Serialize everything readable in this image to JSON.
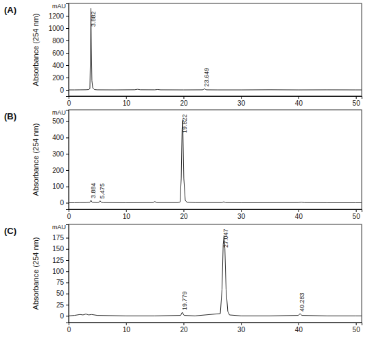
{
  "chart_data": [
    {
      "type": "line",
      "title": "(A)",
      "y_label": "Absorbance (254 nm)",
      "y_unit": "mAU",
      "color": "#2b2b2b",
      "grid": false,
      "xlim": [
        0,
        51
      ],
      "xticks": [
        0,
        10,
        20,
        30,
        40,
        50
      ],
      "ylim": [
        -100,
        1400
      ],
      "yticks": [
        0,
        200,
        400,
        600,
        800,
        1000,
        1200
      ],
      "x": [
        0,
        1,
        2,
        3,
        3.5,
        3.7,
        3.8,
        3.882,
        3.95,
        4.05,
        4.2,
        4.5,
        5,
        8,
        11.5,
        12,
        12.5,
        15,
        15.5,
        16,
        20,
        23.3,
        23.5,
        23.649,
        23.8,
        24,
        26,
        30,
        35,
        40,
        45,
        50,
        51
      ],
      "values": [
        0,
        0,
        1,
        2,
        5,
        20,
        600,
        1320,
        700,
        150,
        30,
        5,
        1,
        0,
        2,
        10,
        2,
        1,
        6,
        1,
        0,
        1,
        8,
        20,
        8,
        1,
        0,
        0,
        2,
        0,
        1,
        0,
        0
      ],
      "annotations": [
        {
          "x": 3.882,
          "label": "3.882"
        },
        {
          "x": 23.649,
          "label": "23.649"
        }
      ]
    },
    {
      "type": "line",
      "title": "(B)",
      "y_label": "Absorbance (254 nm)",
      "y_unit": "mAU",
      "color": "#2b2b2b",
      "grid": false,
      "xlim": [
        0,
        51
      ],
      "xticks": [
        0,
        10,
        20,
        30,
        40,
        50
      ],
      "ylim": [
        -40,
        570
      ],
      "yticks": [
        0,
        100,
        200,
        300,
        400,
        500
      ],
      "x": [
        0,
        1,
        2,
        3,
        3.7,
        3.884,
        4.1,
        5,
        5.3,
        5.475,
        5.7,
        6,
        10,
        14.7,
        15,
        15.3,
        19,
        19.4,
        19.6,
        19.75,
        19.822,
        19.9,
        20.05,
        20.3,
        20.6,
        22,
        26.7,
        27,
        27.3,
        30,
        40,
        40.5,
        41,
        45,
        50,
        51
      ],
      "values": [
        0,
        0,
        1,
        1,
        3,
        15,
        3,
        1,
        3,
        12,
        3,
        1,
        0,
        1,
        8,
        1,
        1,
        5,
        150,
        450,
        505,
        430,
        150,
        15,
        3,
        1,
        1,
        6,
        1,
        0,
        1,
        4,
        1,
        0,
        0,
        0
      ],
      "annotations": [
        {
          "x": 3.884,
          "label": "3.884"
        },
        {
          "x": 5.475,
          "label": "5.475"
        },
        {
          "x": 19.822,
          "label": "19.822"
        }
      ]
    },
    {
      "type": "line",
      "title": "(C)",
      "y_label": "Absorbance (254 nm)",
      "y_unit": "mAU",
      "color": "#2b2b2b",
      "grid": false,
      "xlim": [
        0,
        51
      ],
      "xticks": [
        0,
        10,
        20,
        30,
        40,
        50
      ],
      "ylim": [
        -15,
        205
      ],
      "yticks": [
        0,
        25,
        50,
        75,
        100,
        125,
        150,
        175
      ],
      "x": [
        0,
        1,
        2,
        2.5,
        3,
        3.5,
        4,
        5,
        10,
        15,
        19.5,
        19.779,
        20.1,
        22,
        26.4,
        26.7,
        26.9,
        27.047,
        27.2,
        27.4,
        27.7,
        28,
        30,
        35,
        40,
        40.283,
        40.6,
        45,
        50,
        51
      ],
      "values": [
        0,
        1,
        3,
        2,
        4,
        2,
        3,
        1,
        0,
        0,
        1,
        8,
        1,
        0,
        5,
        60,
        160,
        180,
        150,
        60,
        10,
        2,
        0,
        0,
        1,
        5,
        1,
        0,
        0,
        0
      ],
      "annotations": [
        {
          "x": 19.779,
          "label": "19.779"
        },
        {
          "x": 27.047,
          "label": "27.047"
        },
        {
          "x": 40.283,
          "label": "40.283"
        }
      ]
    }
  ]
}
